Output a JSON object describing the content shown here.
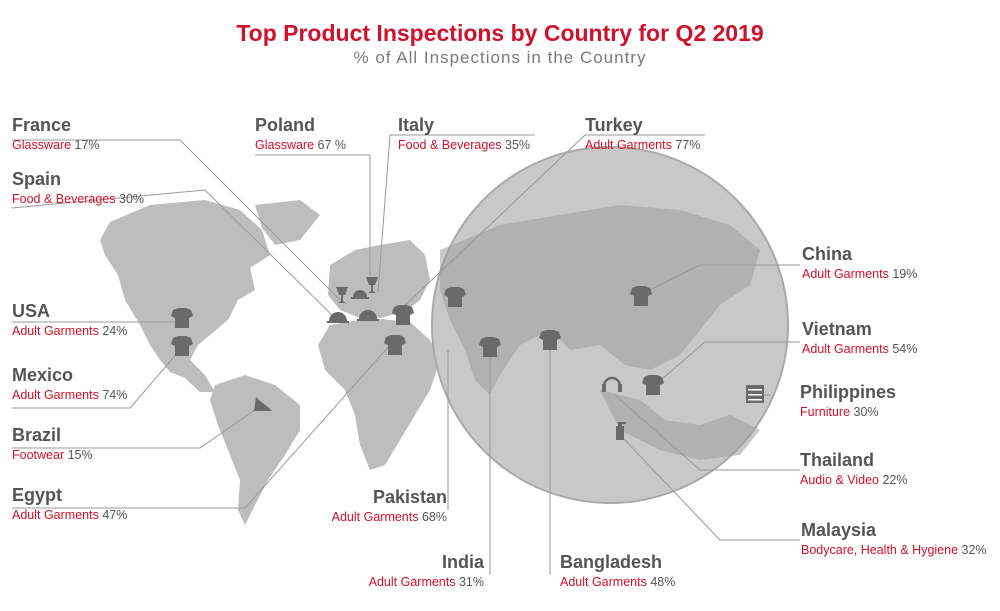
{
  "title": "Top Product Inspections by Country for Q2 2019",
  "subtitle": "% of All Inspections in the Country",
  "colors": {
    "accent": "#d0112b",
    "text": "#555555",
    "land": "#bdbdbd",
    "icon": "#6a6a6a"
  },
  "countries": [
    {
      "name": "France",
      "product": "Glassware",
      "percent": "17%"
    },
    {
      "name": "Spain",
      "product": "Food & Beverages",
      "percent": "30%"
    },
    {
      "name": "Poland",
      "product": "Glassware",
      "percent": "67 %"
    },
    {
      "name": "Italy",
      "product": "Food & Beverages",
      "percent": "35%"
    },
    {
      "name": "Turkey",
      "product": "Adult Garments",
      "percent": "77%"
    },
    {
      "name": "USA",
      "product": "Adult Garments",
      "percent": "24%"
    },
    {
      "name": "Mexico",
      "product": "Adult Garments",
      "percent": "74%"
    },
    {
      "name": "Brazil",
      "product": "Footwear",
      "percent": "15%"
    },
    {
      "name": "Egypt",
      "product": "Adult Garments",
      "percent": "47%"
    },
    {
      "name": "Pakistan",
      "product": "Adult Garments",
      "percent": "68%"
    },
    {
      "name": "India",
      "product": "Adult Garments",
      "percent": "31%"
    },
    {
      "name": "Bangladesh",
      "product": "Adult Garments",
      "percent": "48%"
    },
    {
      "name": "China",
      "product": "Adult Garments",
      "percent": "19%"
    },
    {
      "name": "Vietnam",
      "product": "Adult Garments",
      "percent": "54%"
    },
    {
      "name": "Philippines",
      "product": "Furniture",
      "percent": "30%"
    },
    {
      "name": "Thailand",
      "product": "Audio & Video",
      "percent": "22%"
    },
    {
      "name": "Malaysia",
      "product": "Bodycare, Health & Hygiene",
      "percent": "32%"
    }
  ]
}
